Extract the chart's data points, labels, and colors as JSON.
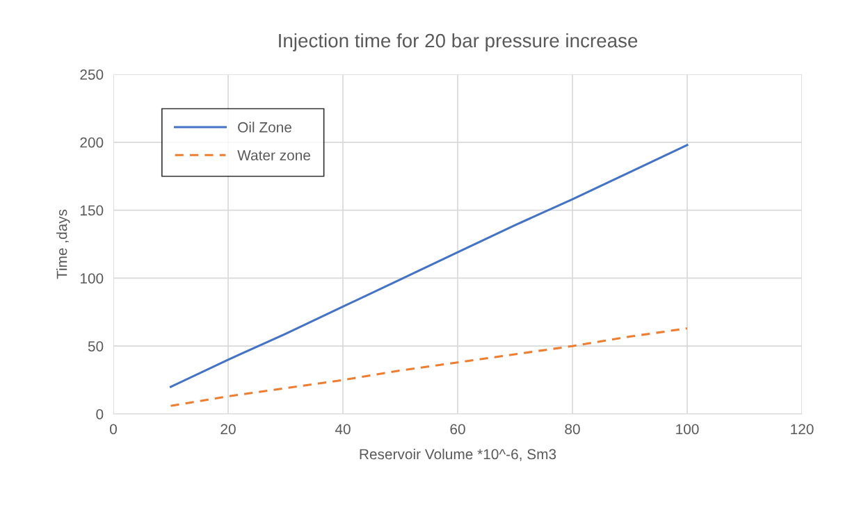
{
  "chart_data": {
    "type": "line",
    "title": "Injection time for 20 bar pressure increase",
    "xlabel": "Reservoir Volume *10^-6, Sm3",
    "ylabel": "Time ,days",
    "x": [
      10,
      20,
      30,
      40,
      50,
      60,
      70,
      80,
      90,
      100
    ],
    "series": [
      {
        "name": "Oil Zone",
        "color": "#4472c4",
        "line_style": "solid",
        "values": [
          20,
          40,
          59,
          79,
          99,
          119,
          139,
          158,
          178,
          198
        ]
      },
      {
        "name": "Water zone",
        "color": "#ed7d31",
        "line_style": "dashed",
        "values": [
          6,
          13,
          19,
          25,
          32,
          38,
          44,
          50,
          57,
          63
        ]
      }
    ],
    "xlim": [
      0,
      120
    ],
    "xticks": [
      0,
      20,
      40,
      60,
      80,
      100,
      120
    ],
    "ylim": [
      0,
      250
    ],
    "yticks": [
      0,
      50,
      100,
      150,
      200,
      250
    ],
    "grid": true,
    "legend": "top left",
    "marker": "none"
  }
}
